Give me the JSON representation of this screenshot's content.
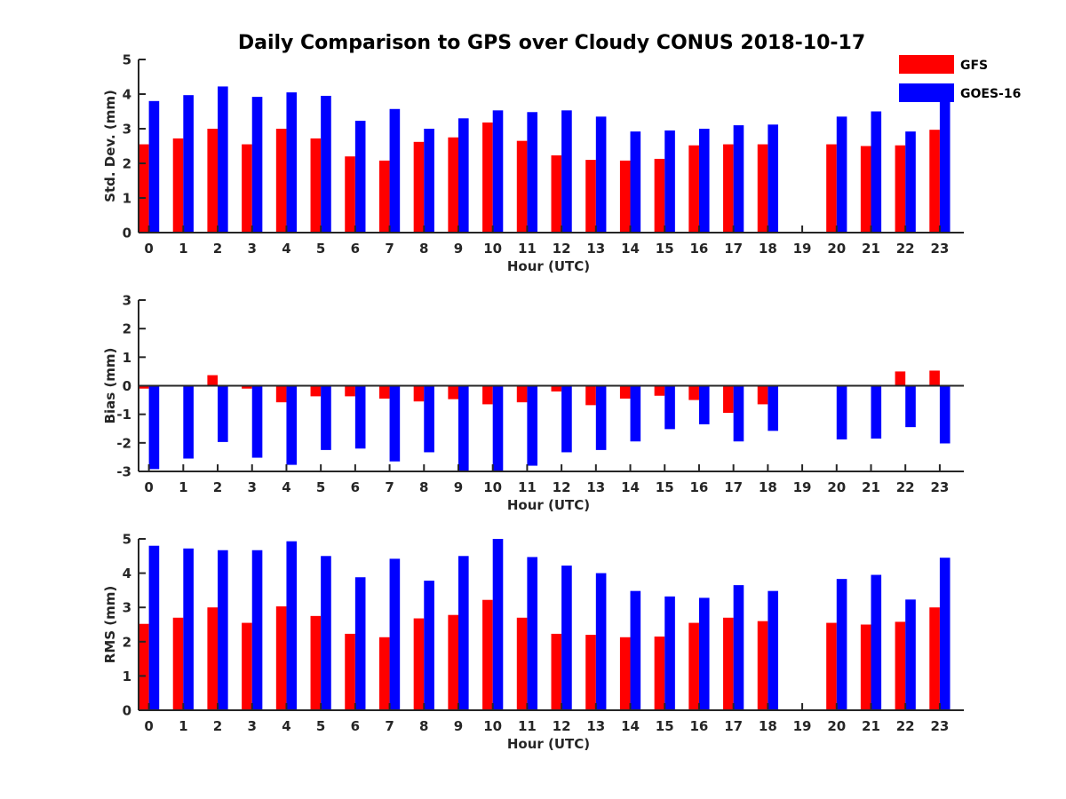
{
  "chart_data": {
    "title": "Daily Comparison to GPS over Cloudy CONUS 2018-10-17",
    "type": "bar",
    "legend": {
      "placement": "top-right",
      "entries": [
        {
          "name": "GFS",
          "color": "#ff0000"
        },
        {
          "name": "GOES-16",
          "color": "#0000ff"
        }
      ]
    },
    "categories": [
      "0",
      "1",
      "2",
      "3",
      "4",
      "5",
      "6",
      "7",
      "8",
      "9",
      "10",
      "11",
      "12",
      "13",
      "14",
      "15",
      "16",
      "17",
      "18",
      "19",
      "20",
      "21",
      "22",
      "23"
    ],
    "panels": [
      {
        "id": "std",
        "ylabel": "Std. Dev. (mm)",
        "xlabel": "Hour (UTC)",
        "ylim": [
          0,
          5
        ],
        "yticks": [
          "0",
          "1",
          "2",
          "3",
          "4",
          "5"
        ],
        "series": [
          {
            "name": "GFS",
            "values": [
              2.55,
              2.72,
              3.0,
              2.55,
              3.0,
              2.72,
              2.2,
              2.08,
              2.62,
              2.75,
              3.18,
              2.65,
              2.23,
              2.1,
              2.08,
              2.13,
              2.52,
              2.55,
              2.55,
              null,
              2.55,
              2.5,
              2.52,
              2.97
            ]
          },
          {
            "name": "GOES-16",
            "values": [
              3.8,
              3.97,
              4.22,
              3.92,
              4.05,
              3.95,
              3.23,
              3.57,
              3.0,
              3.3,
              3.53,
              3.48,
              3.53,
              3.35,
              2.92,
              2.95,
              3.0,
              3.1,
              3.12,
              null,
              3.35,
              3.5,
              2.92,
              4.15
            ]
          }
        ]
      },
      {
        "id": "bias",
        "ylabel": "Bias (mm)",
        "xlabel": "Hour (UTC)",
        "ylim": [
          -3,
          3
        ],
        "yticks": [
          "-3",
          "-2",
          "-1",
          "0",
          "1",
          "2",
          "3"
        ],
        "zero_line": true,
        "series": [
          {
            "name": "GFS",
            "values": [
              -0.1,
              0.0,
              0.37,
              -0.1,
              -0.58,
              -0.37,
              -0.37,
              -0.45,
              -0.55,
              -0.47,
              -0.65,
              -0.58,
              -0.2,
              -0.68,
              -0.45,
              -0.35,
              -0.5,
              -0.95,
              -0.65,
              null,
              -0.03,
              -0.03,
              0.5,
              0.53
            ]
          },
          {
            "name": "GOES-16",
            "values": [
              -2.92,
              -2.55,
              -1.97,
              -2.52,
              -2.77,
              -2.25,
              -2.2,
              -2.65,
              -2.33,
              -3.0,
              -3.0,
              -2.8,
              -2.33,
              -2.25,
              -1.95,
              -1.52,
              -1.35,
              -1.95,
              -1.58,
              null,
              -1.88,
              -1.85,
              -1.45,
              -2.02
            ]
          }
        ]
      },
      {
        "id": "rms",
        "ylabel": "RMS (mm)",
        "xlabel": "Hour (UTC)",
        "ylim": [
          0,
          5
        ],
        "yticks": [
          "0",
          "1",
          "2",
          "3",
          "4",
          "5"
        ],
        "series": [
          {
            "name": "GFS",
            "values": [
              2.52,
              2.7,
              3.0,
              2.55,
              3.03,
              2.75,
              2.23,
              2.13,
              2.68,
              2.78,
              3.22,
              2.7,
              2.23,
              2.2,
              2.13,
              2.15,
              2.55,
              2.7,
              2.6,
              null,
              2.55,
              2.5,
              2.58,
              3.0
            ]
          },
          {
            "name": "GOES-16",
            "values": [
              4.8,
              4.72,
              4.67,
              4.67,
              4.93,
              4.5,
              3.88,
              4.42,
              3.78,
              4.5,
              5.0,
              4.47,
              4.22,
              4.0,
              3.48,
              3.32,
              3.28,
              3.65,
              3.48,
              null,
              3.83,
              3.95,
              3.23,
              4.45
            ]
          }
        ]
      }
    ]
  }
}
